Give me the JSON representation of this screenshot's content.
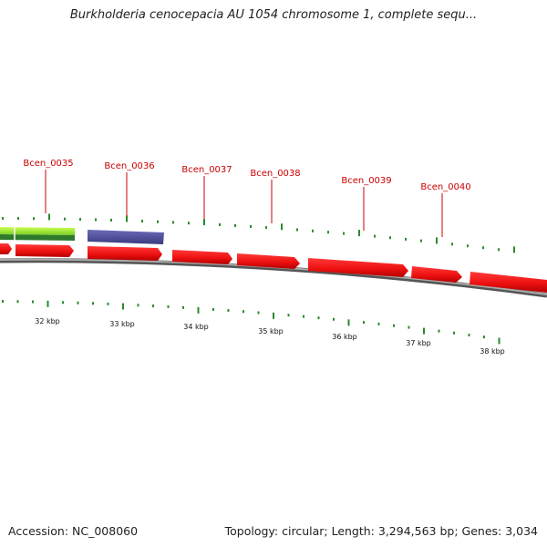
{
  "title": "Burkholderia cenocepacia AU 1054 chromosome 1, complete sequ...",
  "footer": {
    "accession": "Accession: NC_008060",
    "summary": "Topology: circular; Length: 3,294,563 bp; Genes: 3,034"
  },
  "colors": {
    "gene_red": "#ee1111",
    "gene_purple": "#4a4a9a",
    "gene_green": "#88dd22",
    "gene_dark_green": "#2d7a2d",
    "tick_green": "#2a8a2a",
    "label_red": "#cc0000",
    "backbone": "#888888"
  },
  "gene_labels": [
    {
      "text": "Bcen_0035"
    },
    {
      "text": "Bcen_0036"
    },
    {
      "text": "Bcen_0037"
    },
    {
      "text": "Bcen_0038"
    },
    {
      "text": "Bcen_0039"
    },
    {
      "text": "Bcen_0040"
    }
  ],
  "kbp_labels": [
    "32 kbp",
    "33 kbp",
    "34 kbp",
    "35 kbp",
    "36 kbp",
    "37 kbp",
    "38 kbp"
  ]
}
